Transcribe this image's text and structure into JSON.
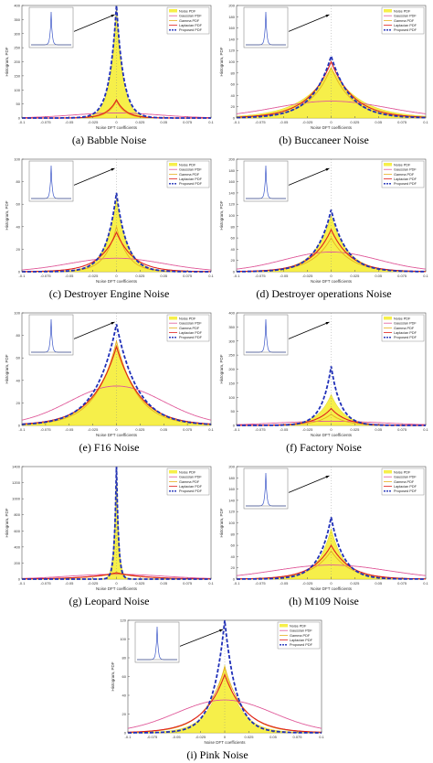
{
  "chart_data": [
    {
      "type": "area",
      "caption": "(a) Babble Noise",
      "ylabel": "Histogram, PDF",
      "xlabel": "Noise DFT coefficients",
      "xlim": [
        -0.1,
        0.1
      ],
      "ylim": [
        0,
        400
      ],
      "yticks": [
        "400",
        "350",
        "300",
        "250",
        "200",
        "150",
        "100",
        "50",
        "0"
      ],
      "xticks": [
        "-0.1",
        "-0.075",
        "-0.05",
        "-0.025",
        "0",
        "0.025",
        "0.05",
        "0.075",
        "0.1"
      ],
      "series": [
        {
          "name": "Noise PDF",
          "color": "#f6ef4a",
          "values": {
            "peak": 400,
            "scale": 0.007
          }
        },
        {
          "name": "Gaussian PDF",
          "color": "#e05a9a",
          "values": {
            "peak": 18,
            "sigma": 0.045
          }
        },
        {
          "name": "Gamma PDF",
          "color": "#e8b020",
          "values": {
            "peak": 60,
            "scale": 0.009
          }
        },
        {
          "name": "Laplacian PDF",
          "color": "#e0201c",
          "values": {
            "peak": 65,
            "scale": 0.01
          }
        },
        {
          "name": "Proposed PDF",
          "color": "#1f2fb8",
          "values": {
            "peak": 400,
            "scale": 0.0075
          }
        }
      ],
      "inset": true
    },
    {
      "type": "area",
      "caption": "(b) Buccaneer Noise",
      "ylabel": "Histogram, PDF",
      "xlabel": "Noise DFT coefficients",
      "xlim": [
        -0.1,
        0.1
      ],
      "ylim": [
        0,
        200
      ],
      "yticks": [
        "200",
        "180",
        "160",
        "140",
        "120",
        "100",
        "80",
        "60",
        "40",
        "20",
        "0"
      ],
      "xticks": [
        "-0.1",
        "-0.075",
        "-0.05",
        "-0.025",
        "0",
        "0.025",
        "0.05",
        "0.075",
        "0.1"
      ],
      "series": [
        {
          "name": "Noise PDF",
          "color": "#f6ef4a",
          "values": {
            "peak": 90,
            "scale": 0.03
          }
        },
        {
          "name": "Gaussian PDF",
          "color": "#e05a9a",
          "values": {
            "peak": 30,
            "sigma": 0.06
          }
        },
        {
          "name": "Gamma PDF",
          "color": "#e8b020",
          "values": {
            "peak": 90,
            "scale": 0.022
          }
        },
        {
          "name": "Laplacian PDF",
          "color": "#e0201c",
          "values": {
            "peak": 100,
            "scale": 0.024
          }
        },
        {
          "name": "Proposed PDF",
          "color": "#1f2fb8",
          "values": {
            "peak": 110,
            "scale": 0.02
          }
        }
      ],
      "inset": true
    },
    {
      "type": "area",
      "caption": "(c) Destroyer Engine Noise",
      "ylabel": "Histogram, PDF",
      "xlabel": "Noise DFT coefficients",
      "xlim": [
        -0.1,
        0.1
      ],
      "ylim": [
        0,
        100
      ],
      "yticks": [
        "100",
        "80",
        "60",
        "40",
        "20",
        "0"
      ],
      "xticks": [
        "-0.1",
        "-0.075",
        "-0.05",
        "-0.025",
        "0",
        "0.025",
        "0.05",
        "0.075",
        "0.1"
      ],
      "series": [
        {
          "name": "Noise PDF",
          "color": "#f6ef4a",
          "values": {
            "peak": 65,
            "scale": 0.012
          }
        },
        {
          "name": "Gaussian PDF",
          "color": "#e05a9a",
          "values": {
            "peak": 12,
            "sigma": 0.05
          }
        },
        {
          "name": "Gamma PDF",
          "color": "#e8b020",
          "values": {
            "peak": 40,
            "scale": 0.012
          }
        },
        {
          "name": "Laplacian PDF",
          "color": "#e0201c",
          "values": {
            "peak": 35,
            "scale": 0.018
          }
        },
        {
          "name": "Proposed PDF",
          "color": "#1f2fb8",
          "values": {
            "peak": 70,
            "scale": 0.011
          }
        }
      ],
      "inset": true
    },
    {
      "type": "area",
      "caption": "(d) Destroyer operations Noise",
      "ylabel": "Histogram, PDF",
      "xlabel": "Noise DFT coefficients",
      "xlim": [
        -0.1,
        0.1
      ],
      "ylim": [
        0,
        200
      ],
      "yticks": [
        "200",
        "180",
        "160",
        "140",
        "120",
        "100",
        "80",
        "60",
        "40",
        "20",
        "0"
      ],
      "xticks": [
        "-0.1",
        "-0.075",
        "-0.05",
        "-0.025",
        "0",
        "0.025",
        "0.05",
        "0.075",
        "0.1"
      ],
      "series": [
        {
          "name": "Noise PDF",
          "color": "#f6ef4a",
          "values": {
            "peak": 100,
            "scale": 0.018
          }
        },
        {
          "name": "Gaussian PDF",
          "color": "#e05a9a",
          "values": {
            "peak": 35,
            "sigma": 0.05
          }
        },
        {
          "name": "Gamma PDF",
          "color": "#e8b020",
          "values": {
            "peak": 60,
            "scale": 0.02
          }
        },
        {
          "name": "Laplacian PDF",
          "color": "#e0201c",
          "values": {
            "peak": 75,
            "scale": 0.02
          }
        },
        {
          "name": "Proposed PDF",
          "color": "#1f2fb8",
          "values": {
            "peak": 110,
            "scale": 0.016
          }
        }
      ],
      "inset": true
    },
    {
      "type": "area",
      "caption": "(e) F16 Noise",
      "ylabel": "Histogram, PDF",
      "xlabel": "Noise DFT coefficients",
      "xlim": [
        -0.1,
        0.1
      ],
      "ylim": [
        0,
        100
      ],
      "yticks": [
        "100",
        "80",
        "60",
        "40",
        "20",
        "0"
      ],
      "xticks": [
        "-0.1",
        "-0.075",
        "-0.05",
        "-0.025",
        "0",
        "0.025",
        "0.05",
        "0.075",
        "0.1"
      ],
      "series": [
        {
          "name": "Noise PDF",
          "color": "#f6ef4a",
          "values": {
            "peak": 72,
            "scale": 0.025
          }
        },
        {
          "name": "Gaussian PDF",
          "color": "#e05a9a",
          "values": {
            "peak": 35,
            "sigma": 0.05
          }
        },
        {
          "name": "Gamma PDF",
          "color": "#e8b020",
          "values": {
            "peak": 75,
            "scale": 0.022
          }
        },
        {
          "name": "Laplacian PDF",
          "color": "#e0201c",
          "values": {
            "peak": 70,
            "scale": 0.025
          }
        },
        {
          "name": "Proposed PDF",
          "color": "#1f2fb8",
          "values": {
            "peak": 90,
            "scale": 0.022
          }
        }
      ],
      "inset": true
    },
    {
      "type": "area",
      "caption": "(f) Factory Noise",
      "ylabel": "Histogram, PDF",
      "xlabel": "Noise DFT coefficients",
      "xlim": [
        -0.1,
        0.1
      ],
      "ylim": [
        0,
        400
      ],
      "yticks": [
        "400",
        "350",
        "300",
        "250",
        "200",
        "150",
        "100",
        "50",
        "0"
      ],
      "xticks": [
        "-0.1",
        "-0.075",
        "-0.05",
        "-0.025",
        "0",
        "0.025",
        "0.05",
        "0.075",
        "0.1"
      ],
      "series": [
        {
          "name": "Noise PDF",
          "color": "#f6ef4a",
          "values": {
            "peak": 110,
            "scale": 0.014
          }
        },
        {
          "name": "Gaussian PDF",
          "color": "#e05a9a",
          "values": {
            "peak": 15,
            "sigma": 0.055
          }
        },
        {
          "name": "Gamma PDF",
          "color": "#e8b020",
          "values": {
            "peak": 40,
            "scale": 0.015
          }
        },
        {
          "name": "Laplacian PDF",
          "color": "#e0201c",
          "values": {
            "peak": 60,
            "scale": 0.016
          }
        },
        {
          "name": "Proposed PDF",
          "color": "#1f2fb8",
          "values": {
            "peak": 210,
            "scale": 0.01
          }
        }
      ],
      "inset": true
    },
    {
      "type": "area",
      "caption": "(g) Leopard Noise",
      "ylabel": "Histogram, PDF",
      "xlabel": "Noise DFT coefficients",
      "xlim": [
        -0.1,
        0.1
      ],
      "ylim": [
        0,
        1400
      ],
      "yticks": [
        "1400",
        "1200",
        "1000",
        "800",
        "600",
        "400",
        "200",
        "0"
      ],
      "xticks": [
        "-0.1",
        "-0.075",
        "-0.05",
        "-0.025",
        "0",
        "0.025",
        "0.05",
        "0.075",
        "0.1"
      ],
      "series": [
        {
          "name": "Noise PDF",
          "color": "#f6ef4a",
          "values": {
            "peak": 1400,
            "scale": 0.0025
          }
        },
        {
          "name": "Gaussian PDF",
          "color": "#e05a9a",
          "values": {
            "peak": 60,
            "sigma": 0.05
          }
        },
        {
          "name": "Gamma PDF",
          "color": "#e8b020",
          "values": {
            "peak": 70,
            "scale": 0.03
          }
        },
        {
          "name": "Laplacian PDF",
          "color": "#e0201c",
          "values": {
            "peak": 80,
            "scale": 0.03
          }
        },
        {
          "name": "Proposed PDF",
          "color": "#1f2fb8",
          "values": {
            "peak": 1400,
            "scale": 0.0022
          }
        }
      ],
      "inset": false
    },
    {
      "type": "area",
      "caption": "(h) M109 Noise",
      "ylabel": "Histogram, PDF",
      "xlabel": "Noise DFT coefficients",
      "xlim": [
        -0.1,
        0.1
      ],
      "ylim": [
        0,
        200
      ],
      "yticks": [
        "200",
        "180",
        "160",
        "140",
        "120",
        "100",
        "80",
        "60",
        "40",
        "20",
        "0"
      ],
      "xticks": [
        "-0.1",
        "-0.075",
        "-0.05",
        "-0.025",
        "0",
        "0.025",
        "0.05",
        "0.075",
        "0.1"
      ],
      "series": [
        {
          "name": "Noise PDF",
          "color": "#f6ef4a",
          "values": {
            "peak": 90,
            "scale": 0.014
          }
        },
        {
          "name": "Gaussian PDF",
          "color": "#e05a9a",
          "values": {
            "peak": 25,
            "sigma": 0.06
          }
        },
        {
          "name": "Gamma PDF",
          "color": "#e8b020",
          "values": {
            "peak": 50,
            "scale": 0.02
          }
        },
        {
          "name": "Laplacian PDF",
          "color": "#e0201c",
          "values": {
            "peak": 60,
            "scale": 0.02
          }
        },
        {
          "name": "Proposed PDF",
          "color": "#1f2fb8",
          "values": {
            "peak": 110,
            "scale": 0.013
          }
        }
      ],
      "inset": true
    },
    {
      "type": "area",
      "caption": "(i) Pink Noise",
      "ylabel": "Histogram, PDF",
      "xlabel": "Noise DFT coefficients",
      "xlim": [
        -0.1,
        0.1
      ],
      "ylim": [
        0,
        120
      ],
      "yticks": [
        "120",
        "100",
        "80",
        "60",
        "40",
        "20",
        "0"
      ],
      "xticks": [
        "-0.1",
        "-0.075",
        "-0.05",
        "-0.025",
        "0",
        "0.025",
        "0.05",
        "0.075",
        "0.1"
      ],
      "series": [
        {
          "name": "Noise PDF",
          "color": "#f6ef4a",
          "values": {
            "peak": 72,
            "scale": 0.016
          }
        },
        {
          "name": "Gaussian PDF",
          "color": "#e05a9a",
          "values": {
            "peak": 35,
            "sigma": 0.05
          }
        },
        {
          "name": "Gamma PDF",
          "color": "#e8b020",
          "values": {
            "peak": 70,
            "scale": 0.02
          }
        },
        {
          "name": "Laplacian PDF",
          "color": "#e0201c",
          "values": {
            "peak": 62,
            "scale": 0.022
          }
        },
        {
          "name": "Proposed PDF",
          "color": "#1f2fb8",
          "values": {
            "peak": 120,
            "scale": 0.012
          }
        }
      ],
      "inset": true
    }
  ]
}
